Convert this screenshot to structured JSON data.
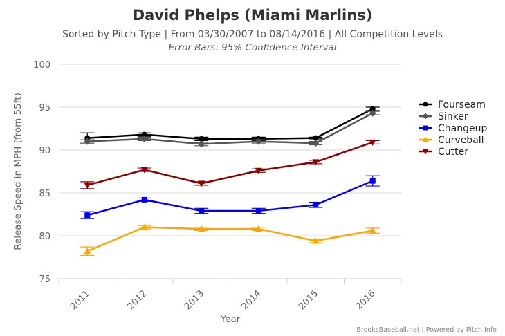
{
  "chart_data": {
    "type": "line",
    "title": "David Phelps (Miami Marlins)",
    "subtitle": "Sorted by Pitch Type | From 03/30/2007 to 08/14/2016 | All Competition Levels",
    "subtitle2": "Error Bars: 95% Confidence Interval",
    "xlabel": "Year",
    "ylabel": "Release Speed in MPH (from 55ft)",
    "categories": [
      "2011",
      "2012",
      "2013",
      "2014",
      "2015",
      "2016"
    ],
    "ylim": [
      75,
      100
    ],
    "yticks": [
      75,
      80,
      85,
      90,
      95,
      100
    ],
    "grid": "horizontal",
    "legend_position": "right",
    "series": [
      {
        "name": "Fourseam",
        "color": "#000000",
        "marker": "circle",
        "values": [
          91.4,
          91.8,
          91.3,
          91.3,
          91.4,
          94.8
        ],
        "error_low": [
          90.8,
          91.6,
          91.1,
          91.1,
          91.3,
          94.6
        ],
        "error_high": [
          92.0,
          92.0,
          91.5,
          91.5,
          91.5,
          95.0
        ]
      },
      {
        "name": "Sinker",
        "color": "#555555",
        "marker": "diamond",
        "values": [
          91.0,
          91.3,
          90.7,
          91.0,
          90.8,
          94.3
        ],
        "error_low": [
          90.8,
          91.1,
          90.5,
          90.8,
          90.6,
          94.1
        ],
        "error_high": [
          91.2,
          91.5,
          90.9,
          91.2,
          91.0,
          94.5
        ]
      },
      {
        "name": "Changeup",
        "color": "#0000ff",
        "marker": "square",
        "values": [
          82.4,
          84.2,
          82.9,
          82.9,
          83.6,
          86.4
        ],
        "error_low": [
          82.0,
          84.0,
          82.6,
          82.6,
          83.3,
          85.8
        ],
        "error_high": [
          82.8,
          84.4,
          83.2,
          83.2,
          83.9,
          87.0
        ]
      },
      {
        "name": "Curveball",
        "color": "#ffa500",
        "marker": "triangle",
        "values": [
          78.2,
          81.0,
          80.8,
          80.8,
          79.4,
          80.6
        ],
        "error_low": [
          77.7,
          80.8,
          80.6,
          80.6,
          79.2,
          80.3
        ],
        "error_high": [
          78.7,
          81.2,
          81.0,
          81.0,
          79.6,
          80.9
        ]
      },
      {
        "name": "Cutter",
        "color": "#8b0000",
        "marker": "triangle-down",
        "values": [
          85.9,
          87.7,
          86.1,
          87.6,
          88.6,
          90.9
        ],
        "error_low": [
          85.5,
          87.5,
          85.9,
          87.4,
          88.4,
          90.7
        ],
        "error_high": [
          86.3,
          87.9,
          86.3,
          87.8,
          88.8,
          91.1
        ]
      }
    ]
  },
  "credits": "BrooksBaseball.net | Powered by Pitch Info"
}
